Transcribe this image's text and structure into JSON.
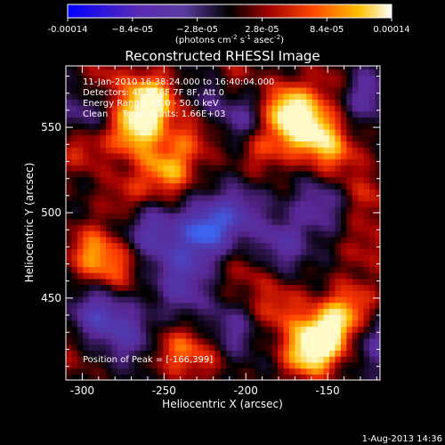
{
  "chart_data": {
    "type": "heatmap",
    "title": "Reconstructed RHESSI Image",
    "xlabel": "Heliocentric X (arcsec)",
    "ylabel": "Heliocentric Y (arcsec)",
    "xlim": [
      -310,
      -118
    ],
    "ylim": [
      402,
      586
    ],
    "x_ticks": [
      -300,
      -250,
      -200,
      -150
    ],
    "y_ticks": [
      450,
      500,
      550
    ],
    "colorbar": {
      "min": -0.00014,
      "max": 0.00014,
      "tick_values": [
        -0.00014,
        -8.4e-05,
        -2.8e-05,
        2.8e-05,
        8.4e-05,
        0.00014
      ],
      "tick_labels": [
        "-0.00014",
        "−8.4e-05",
        "−2.8e-05",
        "2.8e-05",
        "8.4e-05",
        "0.00014"
      ],
      "unit_prefix": "(photons cm",
      "unit_exp1": "-2",
      "unit_mid": " s",
      "unit_exp2": "-1",
      "unit_mid2": " asec",
      "unit_exp3": "-2",
      "unit_suffix": ")"
    },
    "annotations": {
      "time": "11-Jan-2010 16:38:24.000 to 16:40:04.000",
      "detectors": "Detectors: 4F 5F 6F 7F 8F, Att 0",
      "energy": "Energy Range: 25.0 - 50.0 keV",
      "clean": "Clean     Total counts: 1.66E+03",
      "peak": "Position of Peak = [-166,399]"
    },
    "timestamp": "1-Aug-2013 14:36",
    "blobs": [
      {
        "x": -258,
        "y": 566,
        "v": 1.0
      },
      {
        "x": -268,
        "y": 548,
        "v": 0.8
      },
      {
        "x": -248,
        "y": 525,
        "v": 0.7
      },
      {
        "x": -273,
        "y": 510,
        "v": 0.35
      },
      {
        "x": -300,
        "y": 540,
        "v": 0.5
      },
      {
        "x": -285,
        "y": 580,
        "v": 0.3
      },
      {
        "x": -175,
        "y": 560,
        "v": 0.95
      },
      {
        "x": -160,
        "y": 548,
        "v": 0.85
      },
      {
        "x": -145,
        "y": 535,
        "v": 0.5
      },
      {
        "x": -148,
        "y": 575,
        "v": 0.3
      },
      {
        "x": -190,
        "y": 538,
        "v": 0.45
      },
      {
        "x": -210,
        "y": 578,
        "v": 0.4
      },
      {
        "x": -125,
        "y": 510,
        "v": 0.35
      },
      {
        "x": -126,
        "y": 480,
        "v": 0.3
      },
      {
        "x": -150,
        "y": 430,
        "v": 0.95
      },
      {
        "x": -162,
        "y": 418,
        "v": 0.85
      },
      {
        "x": -135,
        "y": 445,
        "v": 0.55
      },
      {
        "x": -180,
        "y": 445,
        "v": 0.45
      },
      {
        "x": -295,
        "y": 478,
        "v": 0.55
      },
      {
        "x": -280,
        "y": 468,
        "v": 0.45
      },
      {
        "x": -245,
        "y": 420,
        "v": 0.45
      },
      {
        "x": -225,
        "y": 418,
        "v": 0.4
      },
      {
        "x": -200,
        "y": 465,
        "v": 0.25
      },
      {
        "x": -305,
        "y": 418,
        "v": 0.2
      },
      {
        "x": -232,
        "y": 545,
        "v": 0.4
      },
      {
        "x": -258,
        "y": 490,
        "v": -0.6
      },
      {
        "x": -225,
        "y": 490,
        "v": -0.95
      },
      {
        "x": -205,
        "y": 500,
        "v": -0.55
      },
      {
        "x": -240,
        "y": 470,
        "v": -0.5
      },
      {
        "x": -290,
        "y": 440,
        "v": -0.7
      },
      {
        "x": -270,
        "y": 428,
        "v": -0.5
      },
      {
        "x": -300,
        "y": 555,
        "v": -0.45
      },
      {
        "x": -220,
        "y": 570,
        "v": -0.4
      },
      {
        "x": -200,
        "y": 555,
        "v": -0.45
      },
      {
        "x": -128,
        "y": 570,
        "v": -0.5
      },
      {
        "x": -155,
        "y": 505,
        "v": -0.45
      },
      {
        "x": -120,
        "y": 425,
        "v": -0.45
      },
      {
        "x": -210,
        "y": 430,
        "v": -0.45
      },
      {
        "x": -178,
        "y": 482,
        "v": -0.5
      },
      {
        "x": -238,
        "y": 452,
        "v": -0.35
      }
    ]
  }
}
